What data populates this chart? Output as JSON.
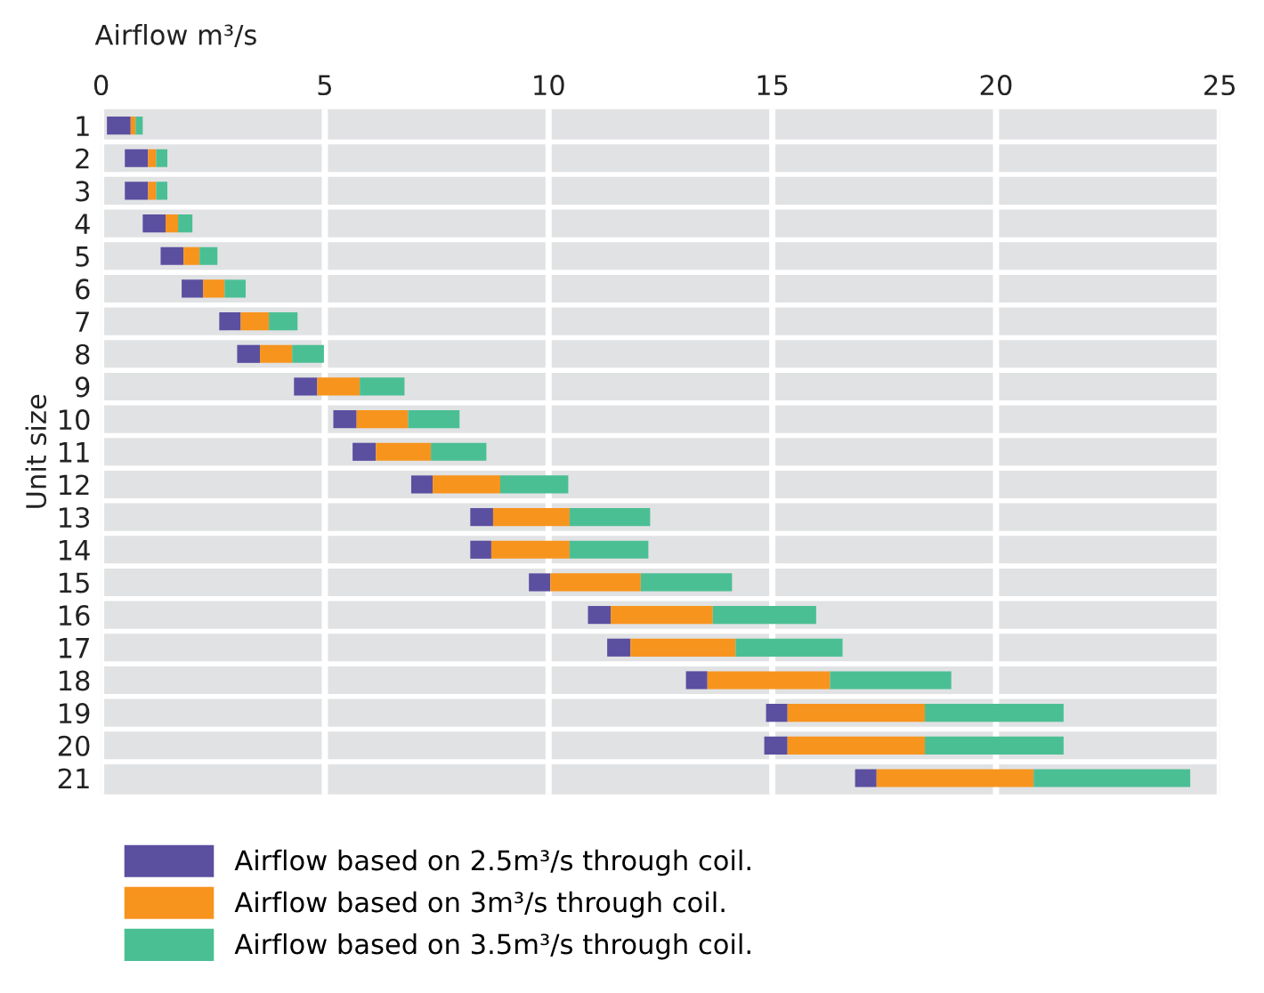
{
  "chart_data": {
    "type": "bar",
    "orientation": "horizontal",
    "xlabel": "Airflow m³/s",
    "ylabel": "Unit size",
    "categories": [
      "1",
      "2",
      "3",
      "4",
      "5",
      "6",
      "7",
      "8",
      "9",
      "10",
      "11",
      "12",
      "13",
      "14",
      "15",
      "16",
      "17",
      "18",
      "19",
      "20",
      "21"
    ],
    "series": [
      {
        "name": "Airflow based on 2.5m³/s through coil.",
        "color": "#5b4fa0",
        "base": [
          0.13,
          0.53,
          0.53,
          0.93,
          1.33,
          1.8,
          2.64,
          3.04,
          4.31,
          5.19,
          5.62,
          6.93,
          8.25,
          8.25,
          9.56,
          10.88,
          11.31,
          13.07,
          14.86,
          14.82,
          16.85
        ],
        "values": [
          0.53,
          0.52,
          0.52,
          0.51,
          0.51,
          0.48,
          0.48,
          0.51,
          0.52,
          0.52,
          0.52,
          0.48,
          0.51,
          0.47,
          0.48,
          0.51,
          0.52,
          0.48,
          0.48,
          0.52,
          0.48
        ]
      },
      {
        "name": "Airflow based on 3m³/s through coil.",
        "color": "#f7941d",
        "base": [
          0.66,
          1.05,
          1.05,
          1.44,
          1.84,
          2.28,
          3.12,
          3.55,
          4.83,
          5.71,
          6.14,
          7.41,
          8.76,
          8.72,
          10.04,
          11.39,
          11.83,
          13.55,
          15.34,
          15.34,
          17.33
        ],
        "values": [
          0.11,
          0.18,
          0.18,
          0.28,
          0.36,
          0.48,
          0.63,
          0.72,
          0.95,
          1.15,
          1.23,
          1.51,
          1.71,
          1.75,
          2.02,
          2.28,
          2.35,
          2.74,
          3.07,
          3.07,
          3.51
        ]
      },
      {
        "name": "Airflow based on 3.5m³/s through coil.",
        "color": "#4bbf94",
        "base": [
          0.77,
          1.23,
          1.23,
          1.72,
          2.2,
          2.76,
          3.75,
          4.27,
          5.78,
          6.86,
          7.37,
          8.92,
          10.47,
          10.47,
          12.06,
          13.67,
          14.18,
          16.29,
          18.41,
          18.41,
          20.84
        ],
        "values": [
          0.16,
          0.25,
          0.25,
          0.32,
          0.4,
          0.47,
          0.64,
          0.71,
          1.0,
          1.15,
          1.24,
          1.52,
          1.8,
          1.76,
          2.04,
          2.31,
          2.39,
          2.71,
          3.1,
          3.1,
          3.5
        ]
      }
    ],
    "xlim": [
      0,
      25
    ],
    "xticks": [
      0,
      5,
      10,
      15,
      20,
      25
    ],
    "grid": "x",
    "legend": "bottom"
  }
}
